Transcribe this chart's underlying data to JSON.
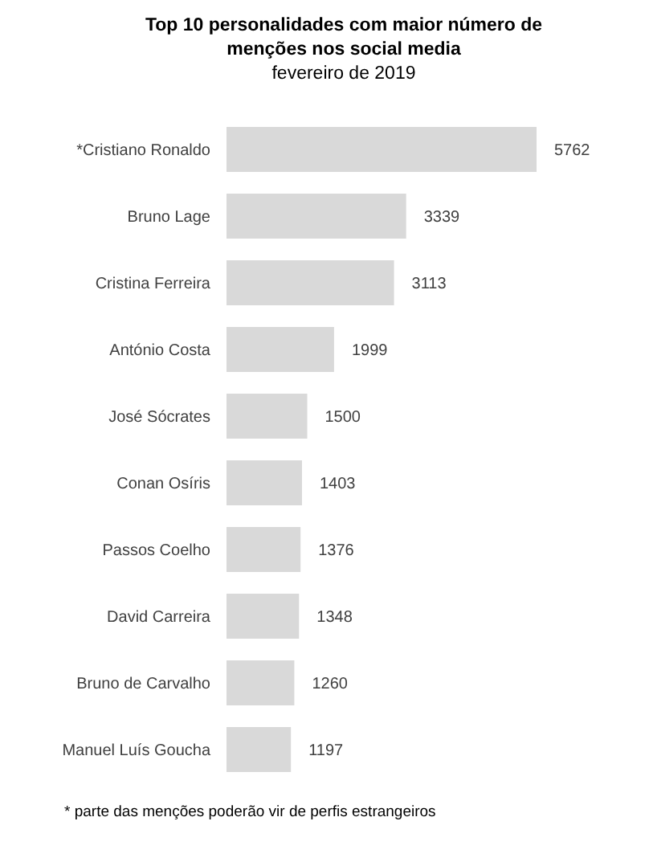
{
  "chart_data": {
    "type": "bar",
    "orientation": "horizontal",
    "title": "Top 10 personalidades com maior número de menções nos social media",
    "subtitle": "fevereiro de 2019",
    "categories": [
      "*Cristiano Ronaldo",
      "Bruno Lage",
      "Cristina Ferreira",
      "António Costa",
      "José Sócrates",
      "Conan Osíris",
      "Passos Coelho",
      "David Carreira",
      "Bruno de Carvalho",
      "Manuel Luís Goucha"
    ],
    "values": [
      5762,
      3339,
      3113,
      1999,
      1500,
      1403,
      1376,
      1348,
      1260,
      1197
    ],
    "color": "#d9d9d9",
    "data_labels": true,
    "annotations": [
      "* parte das menções poderão vir de perfis estrangeiros"
    ]
  }
}
